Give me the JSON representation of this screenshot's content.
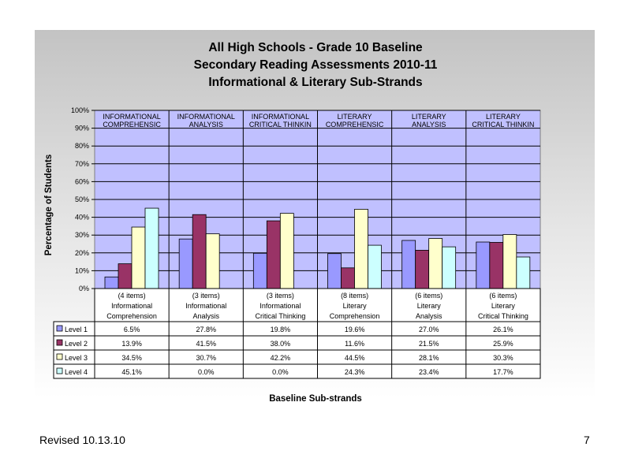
{
  "header": {
    "title_line1": "All High Schools - Grade 10 Baseline",
    "title_line2": "Secondary Reading Assessments 2010-11",
    "title_line3": "Informational & Literary Sub-Strands"
  },
  "footer": {
    "revised": "Revised  10.13.10",
    "page": "7"
  },
  "chart_data": {
    "type": "bar",
    "ylabel": "Percentage of Students",
    "xlabel": "Baseline Sub-strands",
    "ylim": [
      0,
      100
    ],
    "yticks": [
      "0%",
      "10%",
      "20%",
      "30%",
      "40%",
      "50%",
      "60%",
      "70%",
      "80%",
      "90%",
      "100%"
    ],
    "grid": true,
    "group_labels": [
      [
        "INFORMATIONAL",
        "COMPREHENSIC"
      ],
      [
        "INFORMATIONAL",
        "ANALYSIS"
      ],
      [
        "INFORMATIONAL",
        "CRITICAL THINKIN"
      ],
      [
        "LITERARY",
        "COMPREHENSIC"
      ],
      [
        "LITERARY",
        "ANALYSIS"
      ],
      [
        "LITERARY",
        "CRITICAL THINKIN"
      ]
    ],
    "categories": [
      [
        "(4 items)",
        "Informational",
        "Comprehension"
      ],
      [
        "(3 items)",
        "Informational",
        "Analysis"
      ],
      [
        "(3 items)",
        "Informational",
        "Critical Thinking"
      ],
      [
        "(8 items)",
        "Literary",
        "Comprehension"
      ],
      [
        "(6 items)",
        "Literary",
        "Analysis"
      ],
      [
        "(6 items)",
        "Literary",
        "Critical Thinking"
      ]
    ],
    "series": [
      {
        "name": "Level 1",
        "color": "#9999ff",
        "values": [
          6.5,
          27.8,
          19.8,
          19.6,
          27.0,
          26.1
        ],
        "labels": [
          "6.5%",
          "27.8%",
          "19.8%",
          "19.6%",
          "27.0%",
          "26.1%"
        ]
      },
      {
        "name": "Level 2",
        "color": "#993366",
        "values": [
          13.9,
          41.5,
          38.0,
          11.6,
          21.5,
          25.9
        ],
        "labels": [
          "13.9%",
          "41.5%",
          "38.0%",
          "11.6%",
          "21.5%",
          "25.9%"
        ]
      },
      {
        "name": "Level 3",
        "color": "#ffffcc",
        "values": [
          34.5,
          30.7,
          42.2,
          44.5,
          28.1,
          30.3
        ],
        "labels": [
          "34.5%",
          "30.7%",
          "42.2%",
          "44.5%",
          "28.1%",
          "30.3%"
        ]
      },
      {
        "name": "Level 4",
        "color": "#ccffff",
        "values": [
          45.1,
          0.0,
          0.0,
          24.3,
          23.4,
          17.7
        ],
        "labels": [
          "45.1%",
          "0.0%",
          "0.0%",
          "24.3%",
          "23.4%",
          "17.7%"
        ]
      }
    ],
    "plot_background": "#c0c0ff"
  }
}
